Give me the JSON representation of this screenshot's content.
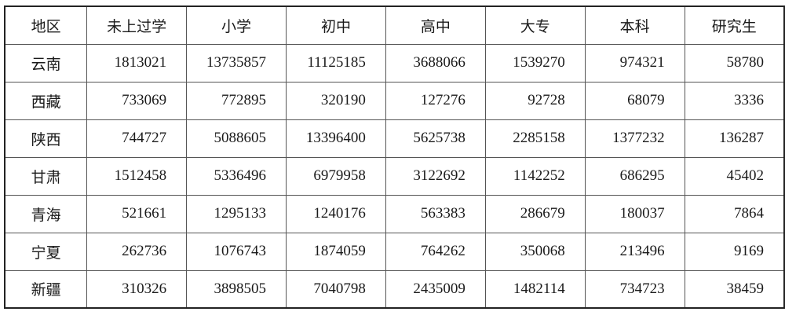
{
  "table": {
    "headers": [
      "地区",
      "未上过学",
      "小学",
      "初中",
      "高中",
      "大专",
      "本科",
      "研究生"
    ],
    "rows": [
      {
        "region": "云南",
        "values": [
          "1813021",
          "13735857",
          "11125185",
          "3688066",
          "1539270",
          "974321",
          "58780"
        ]
      },
      {
        "region": "西藏",
        "values": [
          "733069",
          "772895",
          "320190",
          "127276",
          "92728",
          "68079",
          "3336"
        ]
      },
      {
        "region": "陕西",
        "values": [
          "744727",
          "5088605",
          "13396400",
          "5625738",
          "2285158",
          "1377232",
          "136287"
        ]
      },
      {
        "region": "甘肃",
        "values": [
          "1512458",
          "5336496",
          "6979958",
          "3122692",
          "1142252",
          "686295",
          "45402"
        ]
      },
      {
        "region": "青海",
        "values": [
          "521661",
          "1295133",
          "1240176",
          "563383",
          "286679",
          "180037",
          "7864"
        ]
      },
      {
        "region": "宁夏",
        "values": [
          "262736",
          "1076743",
          "1874059",
          "764262",
          "350068",
          "213496",
          "9169"
        ]
      },
      {
        "region": "新疆",
        "values": [
          "310326",
          "3898505",
          "7040798",
          "2435009",
          "1482114",
          "734723",
          "38459"
        ]
      }
    ]
  }
}
